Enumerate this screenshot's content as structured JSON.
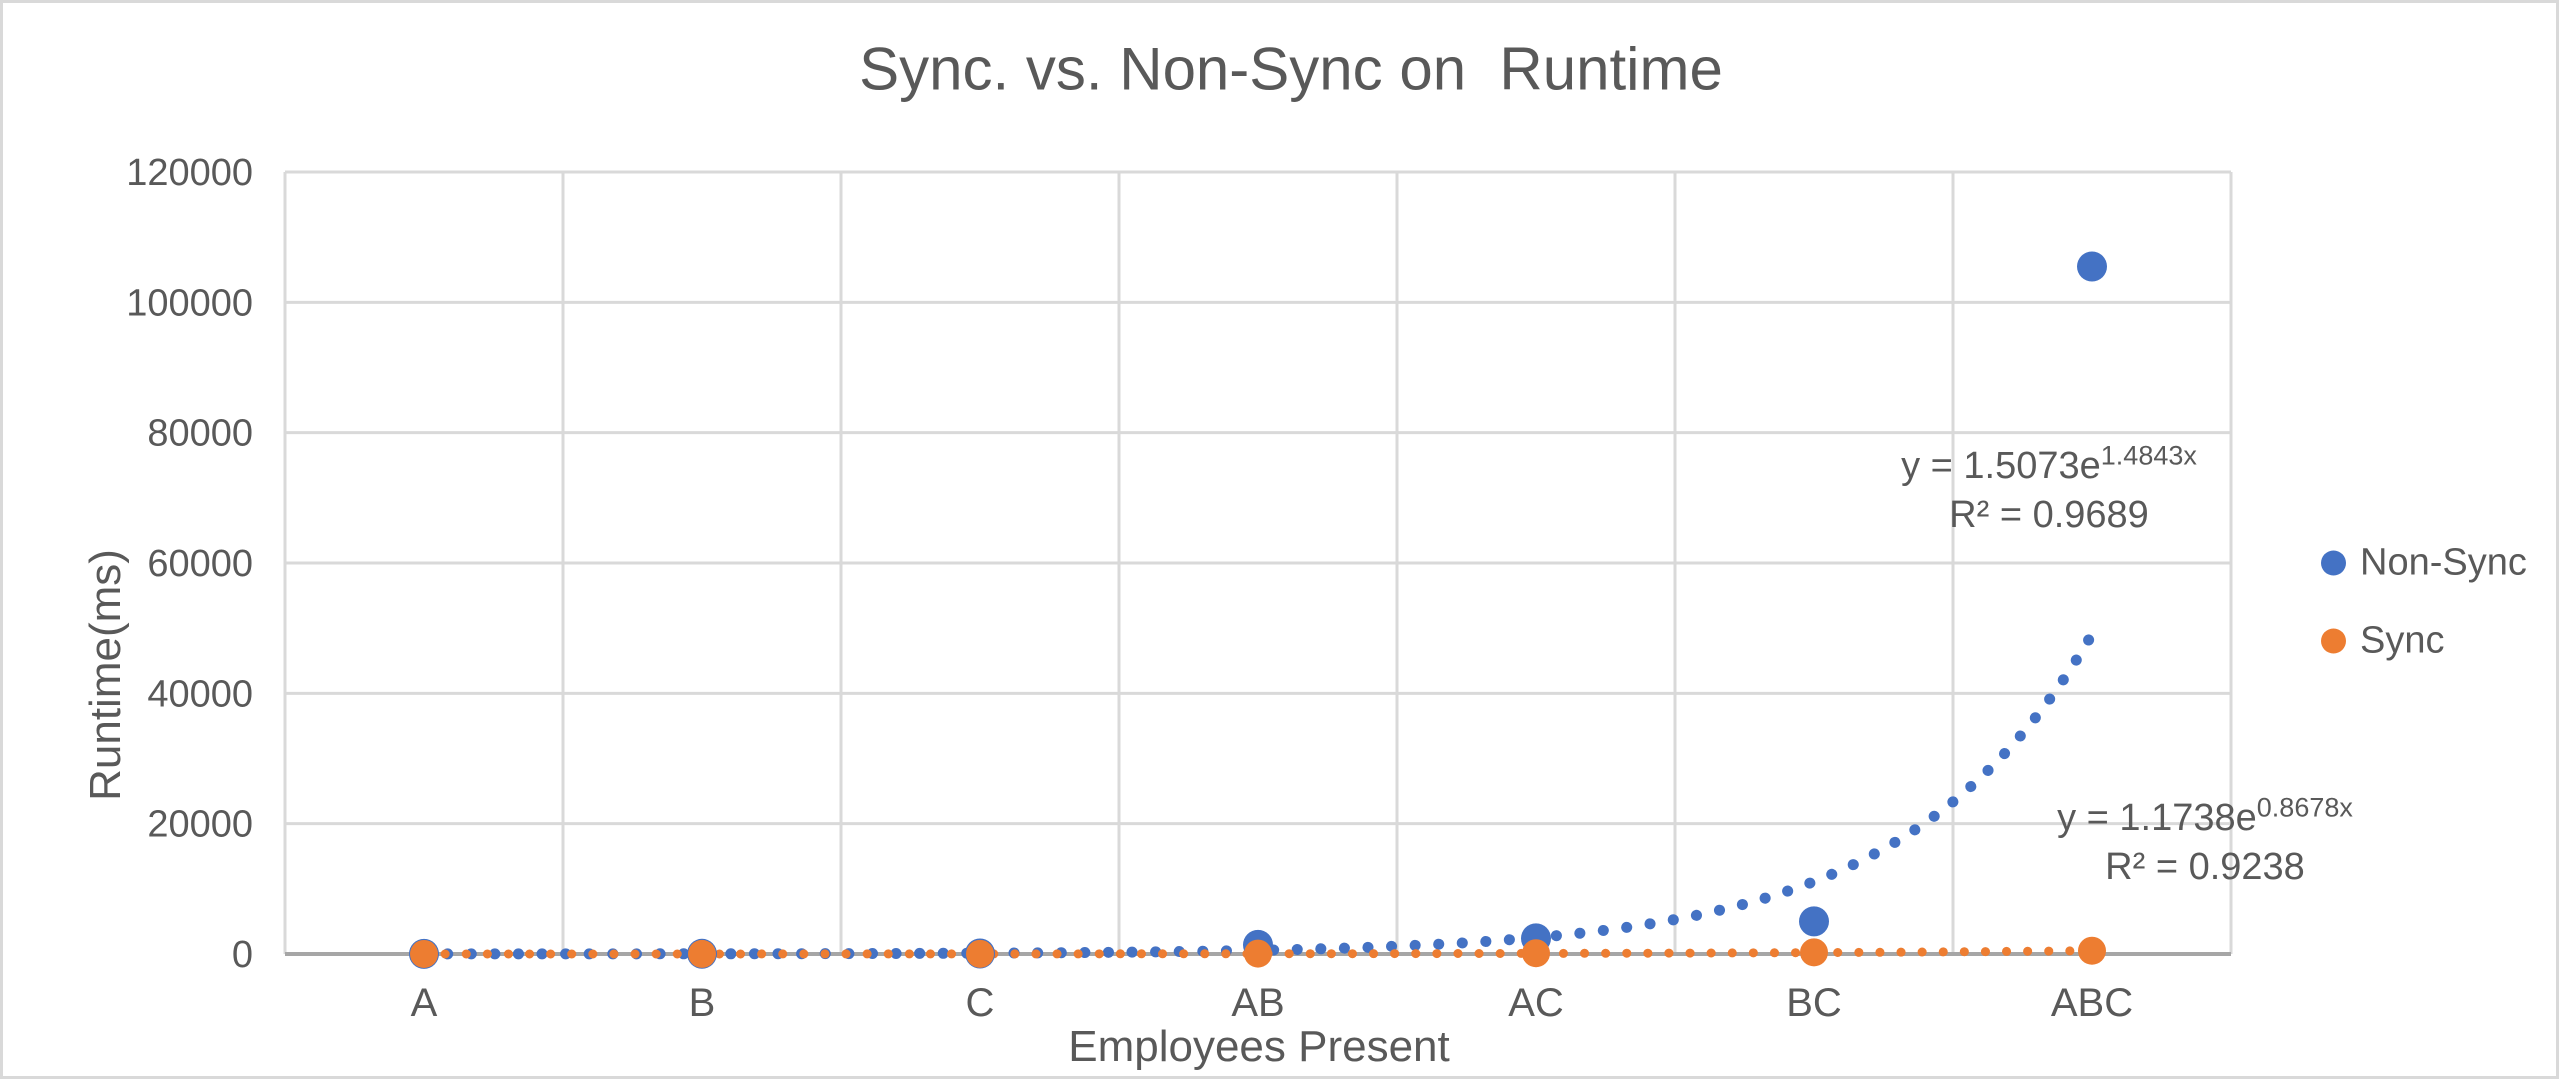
{
  "chart_data": {
    "type": "scatter",
    "title": "Sync. vs. Non-Sync on  Runtime",
    "xlabel": "Employees Present",
    "ylabel": "Runtime(ms)",
    "categories": [
      "A",
      "B",
      "C",
      "AB",
      "AC",
      "BC",
      "ABC"
    ],
    "yticks": [
      0,
      20000,
      40000,
      60000,
      80000,
      100000,
      120000
    ],
    "ylim": [
      0,
      120000
    ],
    "grid": true,
    "legend_position": "right",
    "series": [
      {
        "name": "Non-Sync",
        "color": "#4472C4",
        "values": [
          15,
          30,
          70,
          1400,
          2400,
          5000,
          105500
        ],
        "trendline": {
          "kind": "exponential",
          "a": 1.5073,
          "b": 1.4843,
          "r2": 0.9689,
          "equation_prefix": "y = 1.5073e",
          "equation_exponent": "1.4843x",
          "r2_label": "R² = 0.9689"
        }
      },
      {
        "name": "Sync",
        "color": "#ED7D31",
        "values": [
          5,
          10,
          20,
          60,
          120,
          250,
          500
        ],
        "trendline": {
          "kind": "exponential",
          "a": 1.1738,
          "b": 0.8678,
          "r2": 0.9238,
          "equation_prefix": "y = 1.1738e",
          "equation_exponent": "0.8678x",
          "r2_label": "R² = 0.9238"
        }
      }
    ],
    "colors": {
      "text": "#595959",
      "gridline": "#D9D9D9",
      "axis_line": "#A6A6A6",
      "border": "#D9D9D9"
    }
  }
}
